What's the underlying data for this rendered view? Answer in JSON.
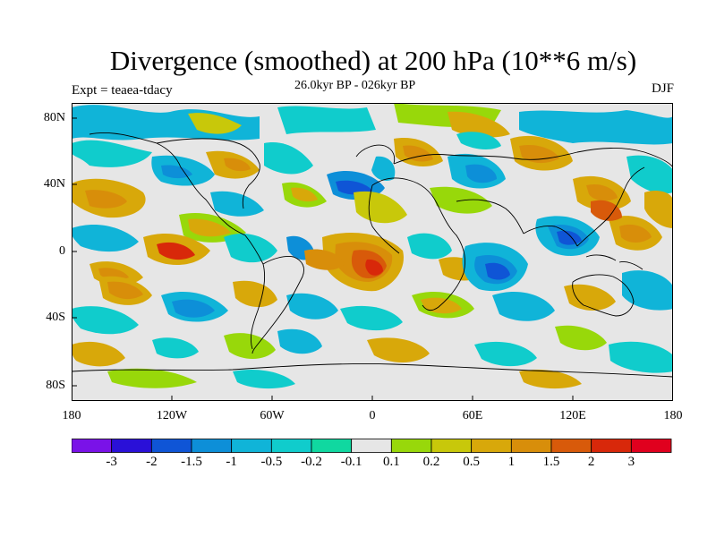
{
  "title": "Divergence (smoothed) at 200 hPa (10**6 m/s)",
  "experiment": "Expt = teaea-tdacy",
  "period": "26.0kyr BP - 026kyr BP",
  "season": "DJF",
  "lat_ticks": [
    "80N",
    "40N",
    "0",
    "40S",
    "80S"
  ],
  "lon_ticks": [
    "180",
    "120W",
    "60W",
    "0",
    "60E",
    "120E",
    "180"
  ],
  "colorbar": {
    "labels": [
      "-3",
      "-2",
      "-1.5",
      "-1",
      "-0.5",
      "-0.2",
      "-0.1",
      "0.1",
      "0.2",
      "0.5",
      "1",
      "1.5",
      "2",
      "3"
    ],
    "colors": [
      "#7a12e8",
      "#2a10d8",
      "#0f55d6",
      "#0d8fd8",
      "#10b4d8",
      "#10cccc",
      "#10d8a0",
      "#e6e6e6",
      "#98d80a",
      "#c8c80a",
      "#d8a80a",
      "#d88e0a",
      "#d85a0a",
      "#d8280a",
      "#e0001e"
    ]
  },
  "colors": {
    "land_outline": "#000000",
    "neutral": "#e6e6e6"
  }
}
